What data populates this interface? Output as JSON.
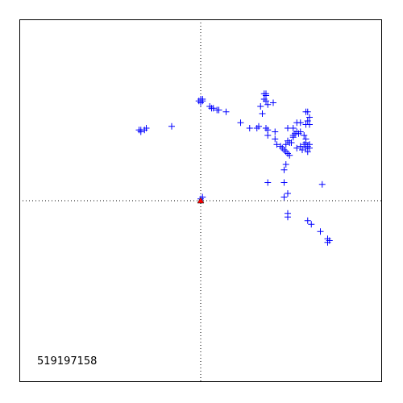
{
  "chart_data": {
    "type": "scatter",
    "title": "",
    "xlabel": "",
    "ylabel": "",
    "xlim": [
      -1,
      1
    ],
    "ylim": [
      -1,
      1
    ],
    "grid": false,
    "crosshair": {
      "x": 0,
      "y": 0,
      "style": "dotted"
    },
    "annotation": "519197158",
    "annotation_position": "bottom-left",
    "series": [
      {
        "marker": "plus",
        "color": "#0000ff",
        "points": [
          [
            0.0,
            0.56
          ],
          [
            0.0,
            0.55
          ],
          [
            0.01,
            0.55
          ],
          [
            -0.01,
            0.55
          ],
          [
            0.0,
            0.54
          ],
          [
            0.01,
            0.56
          ],
          [
            0.05,
            0.52
          ],
          [
            0.06,
            0.51
          ],
          [
            0.07,
            0.51
          ],
          [
            0.09,
            0.5
          ],
          [
            0.1,
            0.5
          ],
          [
            0.14,
            0.49
          ],
          [
            -0.33,
            0.39
          ],
          [
            -0.33,
            0.38
          ],
          [
            -0.34,
            0.39
          ],
          [
            -0.31,
            0.39
          ],
          [
            -0.3,
            0.4
          ],
          [
            -0.16,
            0.41
          ],
          [
            0.22,
            0.43
          ],
          [
            0.27,
            0.4
          ],
          [
            0.31,
            0.4
          ],
          [
            0.32,
            0.41
          ],
          [
            0.35,
            0.59
          ],
          [
            0.36,
            0.59
          ],
          [
            0.36,
            0.58
          ],
          [
            0.35,
            0.56
          ],
          [
            0.36,
            0.55
          ],
          [
            0.37,
            0.53
          ],
          [
            0.33,
            0.52
          ],
          [
            0.34,
            0.48
          ],
          [
            0.4,
            0.54
          ],
          [
            0.36,
            0.4
          ],
          [
            0.37,
            0.39
          ],
          [
            0.37,
            0.36
          ],
          [
            0.41,
            0.38
          ],
          [
            0.41,
            0.34
          ],
          [
            0.42,
            0.31
          ],
          [
            0.44,
            0.3
          ],
          [
            0.45,
            0.29
          ],
          [
            0.46,
            0.28
          ],
          [
            0.47,
            0.27
          ],
          [
            0.48,
            0.26
          ],
          [
            0.49,
            0.25
          ],
          [
            0.47,
            0.31
          ],
          [
            0.48,
            0.33
          ],
          [
            0.49,
            0.32
          ],
          [
            0.5,
            0.32
          ],
          [
            0.51,
            0.35
          ],
          [
            0.51,
            0.36
          ],
          [
            0.52,
            0.37
          ],
          [
            0.53,
            0.38
          ],
          [
            0.54,
            0.37
          ],
          [
            0.55,
            0.38
          ],
          [
            0.57,
            0.36
          ],
          [
            0.58,
            0.34
          ],
          [
            0.58,
            0.32
          ],
          [
            0.59,
            0.3
          ],
          [
            0.58,
            0.29
          ],
          [
            0.57,
            0.31
          ],
          [
            0.6,
            0.31
          ],
          [
            0.6,
            0.29
          ],
          [
            0.59,
            0.27
          ],
          [
            0.55,
            0.3
          ],
          [
            0.56,
            0.28
          ],
          [
            0.53,
            0.29
          ],
          [
            0.48,
            0.4
          ],
          [
            0.51,
            0.4
          ],
          [
            0.53,
            0.43
          ],
          [
            0.55,
            0.43
          ],
          [
            0.58,
            0.42
          ],
          [
            0.6,
            0.42
          ],
          [
            0.59,
            0.44
          ],
          [
            0.6,
            0.46
          ],
          [
            0.58,
            0.49
          ],
          [
            0.59,
            0.49
          ],
          [
            0.47,
            0.2
          ],
          [
            0.46,
            0.17
          ],
          [
            0.46,
            0.1
          ],
          [
            0.37,
            0.1
          ],
          [
            0.46,
            0.02
          ],
          [
            0.48,
            0.04
          ],
          [
            0.67,
            0.09
          ],
          [
            0.0,
            0.01
          ],
          [
            0.01,
            0.02
          ],
          [
            0.48,
            -0.09
          ],
          [
            0.48,
            -0.07
          ],
          [
            0.59,
            -0.11
          ],
          [
            0.61,
            -0.13
          ],
          [
            0.66,
            -0.17
          ],
          [
            0.7,
            -0.21
          ],
          [
            0.71,
            -0.22
          ],
          [
            0.7,
            -0.23
          ]
        ]
      },
      {
        "marker": "triangle",
        "color": "#ff0000",
        "points": [
          [
            0.0,
            0.0
          ]
        ]
      }
    ]
  }
}
